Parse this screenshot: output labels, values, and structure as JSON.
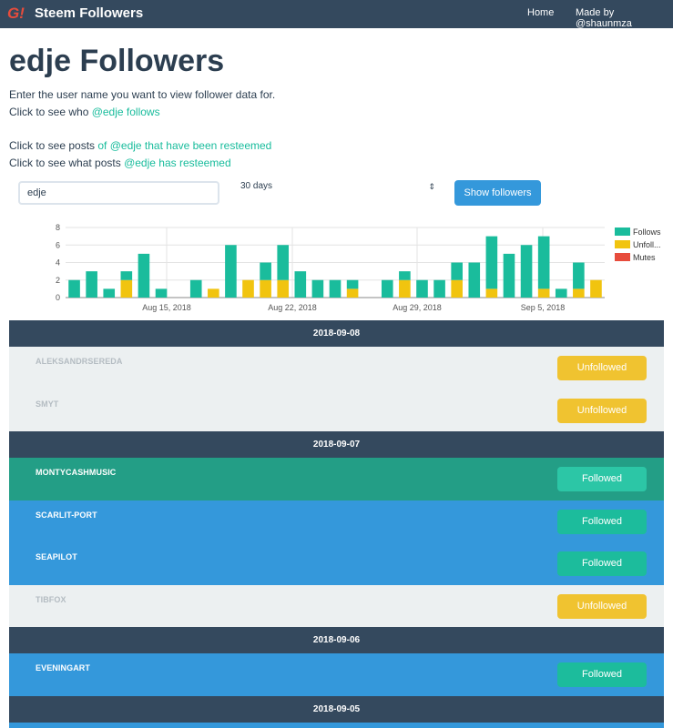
{
  "nav": {
    "brand": "Steem Followers",
    "logo": "G!",
    "home": "Home",
    "made_by": "Made by @shaunmza"
  },
  "header": {
    "title": "edje Followers",
    "intro": "Enter the user name you want to view follower data for.",
    "follows_prefix": "Click to see who ",
    "follows_link": "@edje follows",
    "resteemed_prefix": "Click to see posts ",
    "resteemed_link": "of @edje that have been resteemed",
    "has_resteemed_prefix": "Click to see what posts ",
    "has_resteemed_link": "@edje has resteemed"
  },
  "form": {
    "user_value": "edje",
    "days_selected": "30 days",
    "show_button": "Show followers"
  },
  "colors": {
    "follows": "#1abc9c",
    "unfollows": "#f1c40f",
    "mutes": "#e74c3c",
    "navbar": "#34495e",
    "accent": "#3498db"
  },
  "chart_data": {
    "type": "bar",
    "stacked": true,
    "x_tick_labels": [
      "Aug 15, 2018",
      "Aug 22, 2018",
      "Aug 29, 2018",
      "Sep 5, 2018"
    ],
    "ylim": [
      0,
      8
    ],
    "y_ticks": [
      0,
      2,
      4,
      6,
      8
    ],
    "grid": true,
    "legend_position": "right",
    "days": [
      "Aug 10",
      "Aug 11",
      "Aug 12",
      "Aug 13",
      "Aug 14",
      "Aug 15",
      "Aug 16",
      "Aug 17",
      "Aug 18",
      "Aug 19",
      "Aug 20",
      "Aug 21",
      "Aug 22",
      "Aug 23",
      "Aug 24",
      "Aug 25",
      "Aug 26",
      "Aug 27",
      "Aug 28",
      "Aug 29",
      "Aug 30",
      "Aug 31",
      "Sep 1",
      "Sep 2",
      "Sep 3",
      "Sep 4",
      "Sep 5",
      "Sep 6",
      "Sep 7",
      "Sep 8"
    ],
    "series": [
      {
        "name": "Follows",
        "values": [
          2,
          3,
          1,
          1,
          5,
          1,
          0,
          2,
          0,
          6,
          0,
          2,
          4,
          3,
          2,
          2,
          1,
          0,
          2,
          1,
          2,
          2,
          2,
          4,
          6,
          5,
          6,
          6,
          1,
          3
        ]
      },
      {
        "name": "Unfoll...",
        "values": [
          0,
          0,
          0,
          2,
          0,
          0,
          0,
          0,
          1,
          0,
          2,
          2,
          2,
          0,
          0,
          0,
          1,
          0,
          0,
          2,
          0,
          0,
          2,
          0,
          1,
          0,
          0,
          1,
          0,
          1
        ]
      },
      {
        "name": "Mutes",
        "values": [
          0,
          0,
          0,
          0,
          0,
          0,
          0,
          0,
          0,
          0,
          0,
          0,
          0,
          0,
          0,
          0,
          0,
          0,
          0,
          0,
          0,
          0,
          0,
          0,
          0,
          0,
          0,
          0,
          0,
          0
        ]
      }
    ],
    "trailing_unfollows": 2
  },
  "list": [
    {
      "date": "2018-09-08",
      "items": [
        {
          "name": "ALEKSANDRSEREDA",
          "status": "Unfollowed",
          "style": "unf"
        },
        {
          "name": "SMYT",
          "status": "Unfollowed",
          "style": "unf"
        }
      ]
    },
    {
      "date": "2018-09-07",
      "items": [
        {
          "name": "MONTYCASHMUSIC",
          "status": "Followed",
          "style": "teal"
        },
        {
          "name": "SCARLIT-PORT",
          "status": "Followed",
          "style": "blue"
        },
        {
          "name": "SEAPILOT",
          "status": "Followed",
          "style": "blue"
        },
        {
          "name": "TIBFOX",
          "status": "Unfollowed",
          "style": "unf"
        }
      ]
    },
    {
      "date": "2018-09-06",
      "items": [
        {
          "name": "EVENINGART",
          "status": "Followed",
          "style": "blue"
        }
      ]
    },
    {
      "date": "2018-09-05",
      "items": [
        {
          "name": "",
          "status": "",
          "style": "blue"
        }
      ]
    }
  ]
}
